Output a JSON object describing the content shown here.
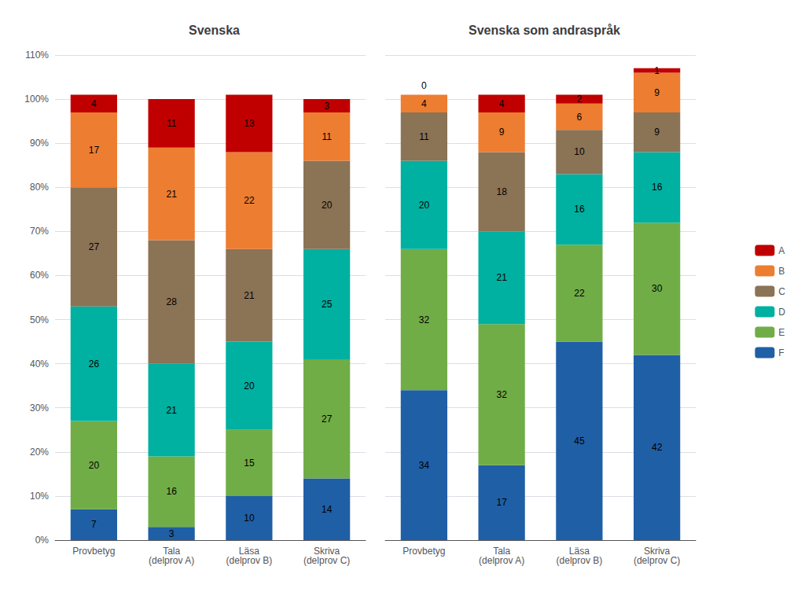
{
  "chart_data": [
    {
      "type": "bar",
      "title": "Svenska",
      "categories": [
        "Provbetyg",
        "Tala\n(delprov A)",
        "Läsa\n(delprov B)",
        "Skriva\n(delprov C)"
      ],
      "series": [
        {
          "name": "F",
          "color": "#1F5FA6",
          "values": [
            7,
            3,
            10,
            14
          ]
        },
        {
          "name": "E",
          "color": "#70AD47",
          "values": [
            20,
            16,
            15,
            27
          ]
        },
        {
          "name": "D",
          "color": "#00B0A0",
          "values": [
            26,
            21,
            20,
            25
          ]
        },
        {
          "name": "C",
          "color": "#8B7355",
          "values": [
            27,
            28,
            21,
            20
          ]
        },
        {
          "name": "B",
          "color": "#ED7D31",
          "values": [
            17,
            21,
            22,
            11
          ]
        },
        {
          "name": "A",
          "color": "#C00000",
          "values": [
            4,
            11,
            13,
            3
          ]
        }
      ],
      "ylim": [
        0,
        110
      ],
      "yticks": [
        {
          "value": 0,
          "label": "0%"
        },
        {
          "value": 10,
          "label": "10%"
        },
        {
          "value": 20,
          "label": "20%"
        },
        {
          "value": 30,
          "label": "30%"
        },
        {
          "value": 40,
          "label": "40%"
        },
        {
          "value": 50,
          "label": "50%"
        },
        {
          "value": 60,
          "label": "60%"
        },
        {
          "value": 70,
          "label": "70%"
        },
        {
          "value": 80,
          "label": "80%"
        },
        {
          "value": 90,
          "label": "90%"
        },
        {
          "value": 100,
          "label": "100%"
        },
        {
          "value": 110,
          "label": "110%"
        }
      ],
      "grid": true,
      "stacked": true,
      "data_labels": true
    },
    {
      "type": "bar",
      "title": "Svenska som andraspråk",
      "categories": [
        "Provbetyg",
        "Tala\n(delprov A)",
        "Läsa\n(delprov B)",
        "Skriva\n(delprov C)"
      ],
      "series": [
        {
          "name": "F",
          "color": "#1F5FA6",
          "values": [
            34,
            17,
            45,
            42
          ]
        },
        {
          "name": "E",
          "color": "#70AD47",
          "values": [
            32,
            32,
            22,
            30
          ]
        },
        {
          "name": "D",
          "color": "#00B0A0",
          "values": [
            20,
            21,
            16,
            16
          ]
        },
        {
          "name": "C",
          "color": "#8B7355",
          "values": [
            11,
            18,
            10,
            9
          ]
        },
        {
          "name": "B",
          "color": "#ED7D31",
          "values": [
            4,
            9,
            6,
            9
          ]
        },
        {
          "name": "A",
          "color": "#C00000",
          "values": [
            0,
            4,
            2,
            1
          ]
        }
      ],
      "ylim": [
        0,
        110
      ],
      "yticks": [
        {
          "value": 0,
          "label": "0%"
        },
        {
          "value": 10,
          "label": "10%"
        },
        {
          "value": 20,
          "label": "20%"
        },
        {
          "value": 30,
          "label": "30%"
        },
        {
          "value": 40,
          "label": "40%"
        },
        {
          "value": 50,
          "label": "50%"
        },
        {
          "value": 60,
          "label": "60%"
        },
        {
          "value": 70,
          "label": "70%"
        },
        {
          "value": 80,
          "label": "80%"
        },
        {
          "value": 90,
          "label": "90%"
        },
        {
          "value": 100,
          "label": "100%"
        },
        {
          "value": 110,
          "label": "110%"
        }
      ],
      "grid": true,
      "stacked": true,
      "data_labels": true,
      "tick_labels": "x",
      "legend": "right"
    }
  ]
}
